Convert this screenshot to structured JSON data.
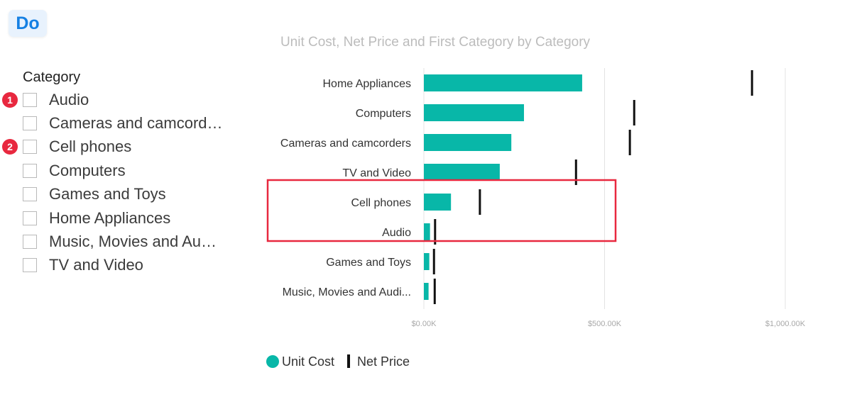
{
  "badge": {
    "label": "Do"
  },
  "slicer": {
    "title": "Category",
    "items": [
      {
        "label": "Audio",
        "checked": false,
        "marker": "1"
      },
      {
        "label": "Cameras and camcorders",
        "checked": false
      },
      {
        "label": "Cell phones",
        "checked": false,
        "marker": "2"
      },
      {
        "label": "Computers",
        "checked": false
      },
      {
        "label": "Games and Toys",
        "checked": false
      },
      {
        "label": "Home Appliances",
        "checked": false
      },
      {
        "label": "Music, Movies and Audio Books",
        "checked": false
      },
      {
        "label": "TV and Video",
        "checked": false
      }
    ]
  },
  "highlight": {
    "categories": [
      "Cell phones",
      "Audio"
    ],
    "color": "#e8283f"
  },
  "chart_data": {
    "type": "bar",
    "orientation": "horizontal",
    "title": "Unit Cost, Net Price and First Category by Category",
    "categories": [
      "Home Appliances",
      "Computers",
      "Cameras and camcorders",
      "TV and Video",
      "Cell phones",
      "Audio",
      "Games and Toys",
      "Music, Movies and Audio Books"
    ],
    "series": [
      {
        "name": "Unit Cost",
        "kind": "bar",
        "color": "#08b7a8",
        "values": [
          438,
          277,
          242,
          210,
          75,
          17,
          15,
          13
        ]
      },
      {
        "name": "Net Price",
        "kind": "marker",
        "color": "#111111",
        "values": [
          908,
          582,
          570,
          421,
          155,
          31,
          28,
          30
        ]
      }
    ],
    "xlim": [
      0,
      1000
    ],
    "ticks": [
      {
        "value": 0,
        "label": "$0.00K"
      },
      {
        "value": 500,
        "label": "$500.00K"
      },
      {
        "value": 1000,
        "label": "$1,000.00K"
      }
    ],
    "grid": true,
    "legend": "bottom-left"
  }
}
